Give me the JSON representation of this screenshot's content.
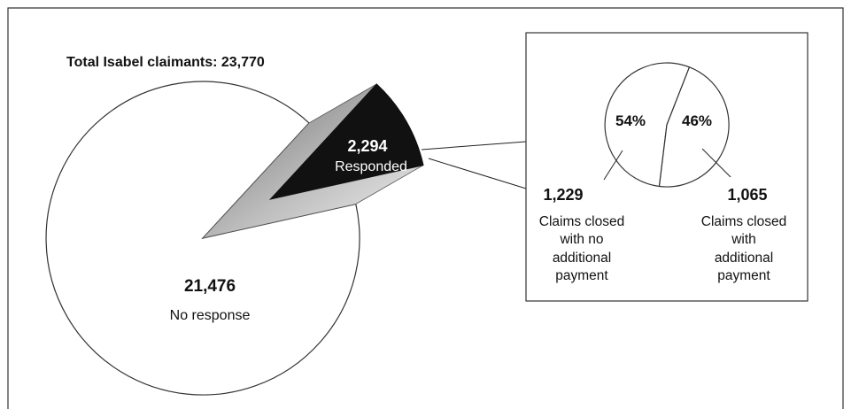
{
  "chart_data": {
    "type": "pie",
    "title": "Total Isabel claimants: 23,770",
    "slices": [
      {
        "label": "No response",
        "value": 21476,
        "value_label": "21,476",
        "color": "#ffffff"
      },
      {
        "label": "Responded",
        "value": 2294,
        "value_label": "2,294",
        "color": "#111111"
      }
    ],
    "inset": {
      "type": "pie",
      "of": "Responded",
      "slices": [
        {
          "percent": 54,
          "percent_label": "54%",
          "value": 1229,
          "value_label": "1,229",
          "label_lines": [
            "Claims closed",
            "with no",
            "additional",
            "payment"
          ]
        },
        {
          "percent": 46,
          "percent_label": "46%",
          "value": 1065,
          "value_label": "1,065",
          "label_lines": [
            "Claims closed",
            "with",
            "additional",
            "payment"
          ]
        }
      ]
    }
  }
}
